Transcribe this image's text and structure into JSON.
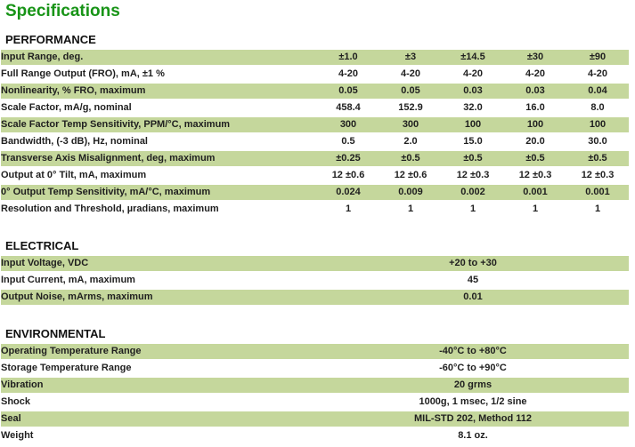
{
  "page": {
    "title": "Specifications"
  },
  "colors": {
    "title_green": "#189417",
    "row_shade": "#c5d79c",
    "text": "#1f1f1f"
  },
  "value_columns": 5,
  "sections": [
    {
      "heading": "PERFORMANCE",
      "rows": [
        {
          "label": "Input Range, deg.",
          "values": [
            "±1.0",
            "±3",
            "±14.5",
            "±30",
            "±90"
          ]
        },
        {
          "label": "Full Range Output (FRO), mA, ±1 %",
          "values": [
            "4-20",
            "4-20",
            "4-20",
            "4-20",
            "4-20"
          ]
        },
        {
          "label": "Nonlinearity, % FRO, maximum",
          "values": [
            "0.05",
            "0.05",
            "0.03",
            "0.03",
            "0.04"
          ]
        },
        {
          "label": "Scale Factor, mA/g, nominal",
          "values": [
            "458.4",
            "152.9",
            "32.0",
            "16.0",
            "8.0"
          ]
        },
        {
          "label": "Scale Factor Temp Sensitivity, PPM/°C, maximum",
          "values": [
            "300",
            "300",
            "100",
            "100",
            "100"
          ]
        },
        {
          "label": "Bandwidth, (-3 dB), Hz, nominal",
          "values": [
            "0.5",
            "2.0",
            "15.0",
            "20.0",
            "30.0"
          ]
        },
        {
          "label": "Transverse Axis Misalignment, deg, maximum",
          "values": [
            "±0.25",
            "±0.5",
            "±0.5",
            "±0.5",
            "±0.5"
          ]
        },
        {
          "label": "Output at 0° Tilt, mA, maximum",
          "values": [
            "12 ±0.6",
            "12 ±0.6",
            "12 ±0.3",
            "12 ±0.3",
            "12 ±0.3"
          ]
        },
        {
          "label": "0° Output Temp Sensitivity, mA/°C, maximum",
          "values": [
            "0.024",
            "0.009",
            "0.002",
            "0.001",
            "0.001"
          ]
        },
        {
          "label": "Resolution and Threshold, µradians, maximum",
          "values": [
            "1",
            "1",
            "1",
            "1",
            "1"
          ]
        }
      ]
    },
    {
      "heading": "ELECTRICAL",
      "rows": [
        {
          "label": "Input Voltage, VDC",
          "values": [
            "+20 to +30"
          ]
        },
        {
          "label": "Input Current, mA, maximum",
          "values": [
            "45"
          ]
        },
        {
          "label": "Output Noise, mArms, maximum",
          "values": [
            "0.01"
          ]
        }
      ]
    },
    {
      "heading": "ENVIRONMENTAL",
      "rows": [
        {
          "label": "Operating Temperature Range",
          "values": [
            "-40°C to +80°C"
          ]
        },
        {
          "label": "Storage Temperature Range",
          "values": [
            "-60°C to +90°C"
          ]
        },
        {
          "label": "Vibration",
          "values": [
            "20 grms"
          ]
        },
        {
          "label": "Shock",
          "values": [
            "1000g, 1 msec, 1/2 sine"
          ]
        },
        {
          "label": "Seal",
          "values": [
            "MIL-STD 202, Method 112"
          ]
        },
        {
          "label": "Weight",
          "values": [
            "8.1 oz."
          ]
        }
      ]
    }
  ]
}
